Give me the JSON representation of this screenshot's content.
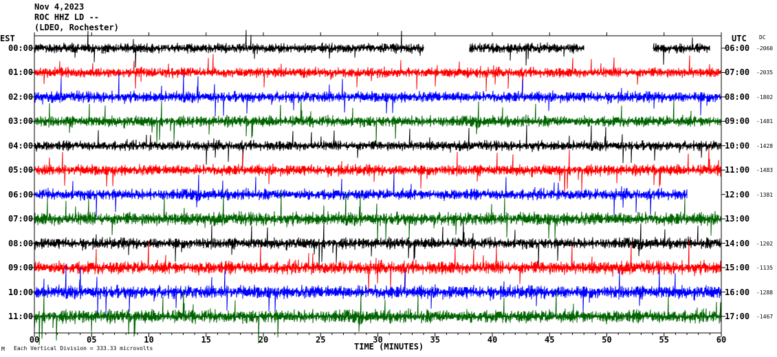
{
  "header": {
    "date": "Nov 4,2023",
    "station": "ROC HHZ LD --",
    "location": "(LDEO, Rochester)"
  },
  "footer": {
    "scale_note": "Each Vertical Division = 333.33 microvolts",
    "corner_mark": "M"
  },
  "chart_data": {
    "type": "line",
    "title": "Nov 4,2023",
    "xlabel": "TIME (MINUTES)",
    "ylabel_left": "EST",
    "ylabel_right": "UTC",
    "dc_label": "DC",
    "xlim": [
      0,
      60
    ],
    "x_ticks": [
      "00",
      "05",
      "10",
      "15",
      "20",
      "25",
      "30",
      "35",
      "40",
      "45",
      "50",
      "55",
      "60"
    ],
    "trace_colors": [
      "#000000",
      "#ff0000",
      "#0000ff",
      "#006400"
    ],
    "rows": [
      {
        "est": "00:00",
        "utc": "06:00",
        "dc": "-2060",
        "color": "#000000",
        "start_min": 0,
        "end_min": 59,
        "gaps": [
          [
            34,
            38
          ],
          [
            48,
            54
          ]
        ],
        "amp": 0.9
      },
      {
        "est": "01:00",
        "utc": "07:00",
        "dc": "-2035",
        "color": "#ff0000",
        "start_min": 0,
        "end_min": 60,
        "gaps": [],
        "amp": 0.9
      },
      {
        "est": "02:00",
        "utc": "08:00",
        "dc": "-1802",
        "color": "#0000ff",
        "start_min": 0,
        "end_min": 60,
        "gaps": [],
        "amp": 1.0
      },
      {
        "est": "03:00",
        "utc": "09:00",
        "dc": "-1481",
        "color": "#006400",
        "start_min": 0,
        "end_min": 60,
        "gaps": [],
        "amp": 1.0
      },
      {
        "est": "04:00",
        "utc": "10:00",
        "dc": "-1428",
        "color": "#000000",
        "start_min": 0,
        "end_min": 60,
        "gaps": [],
        "amp": 0.9
      },
      {
        "est": "05:00",
        "utc": "11:00",
        "dc": "-1483",
        "color": "#ff0000",
        "start_min": 0,
        "end_min": 60,
        "gaps": [],
        "amp": 1.0
      },
      {
        "est": "06:00",
        "utc": "12:00",
        "dc": "-1381",
        "color": "#0000ff",
        "start_min": 0,
        "end_min": 57,
        "gaps": [],
        "amp": 1.0
      },
      {
        "est": "07:00",
        "utc": "13:00",
        "dc": "",
        "color": "#006400",
        "start_min": 0,
        "end_min": 60,
        "gaps": [],
        "amp": 1.2
      },
      {
        "est": "08:00",
        "utc": "14:00",
        "dc": "-1202",
        "color": "#000000",
        "start_min": 0,
        "end_min": 60,
        "gaps": [],
        "amp": 1.0
      },
      {
        "est": "09:00",
        "utc": "15:00",
        "dc": "-1135",
        "color": "#ff0000",
        "start_min": 0,
        "end_min": 60,
        "gaps": [],
        "amp": 1.2
      },
      {
        "est": "10:00",
        "utc": "16:00",
        "dc": "-1288",
        "color": "#0000ff",
        "start_min": 0,
        "end_min": 60,
        "gaps": [],
        "amp": 1.2
      },
      {
        "est": "11:00",
        "utc": "17:00",
        "dc": "-1467",
        "color": "#006400",
        "start_min": 0,
        "end_min": 60,
        "gaps": [],
        "amp": 1.2
      }
    ],
    "grid": false
  }
}
